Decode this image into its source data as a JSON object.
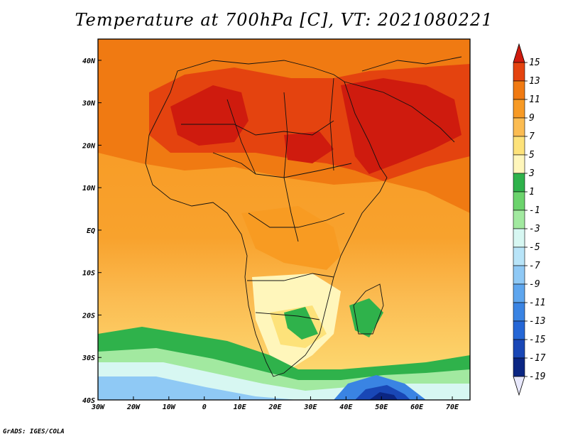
{
  "title": "Temperature at 700hPa [C], VT: 2021080221",
  "credit": "GrADS: IGES/COLA",
  "map": {
    "lon_range": [
      -30,
      75
    ],
    "lat_range": [
      -40,
      45
    ],
    "lon_ticks": [
      "30W",
      "20W",
      "10W",
      "0",
      "10E",
      "20E",
      "30E",
      "40E",
      "50E",
      "60E",
      "70E"
    ],
    "lat_ticks": [
      "40N",
      "30N",
      "20N",
      "10N",
      "EQ",
      "10S",
      "20S",
      "30S",
      "40S"
    ],
    "variable": "Temperature at 700hPa",
    "units": "C",
    "valid_time": "2021080221"
  },
  "colorbar": {
    "labels": [
      "15",
      "13",
      "11",
      "9",
      "7",
      "5",
      "3",
      "1",
      "-1",
      "-3",
      "-5",
      "-7",
      "-9",
      "-11",
      "-13",
      "-15",
      "-17",
      "-19"
    ],
    "colors": [
      "#cf1b0e",
      "#e4430f",
      "#f07a12",
      "#f79a25",
      "#fbbc52",
      "#fde27a",
      "#fff6bb",
      "#2fb24b",
      "#6bd36c",
      "#a2e9a0",
      "#d7f7f2",
      "#b8e4f8",
      "#8fc9f5",
      "#5ea6ee",
      "#3a84e3",
      "#2567d6",
      "#1947b6",
      "#0b2683",
      "#e8e8fc"
    ]
  }
}
